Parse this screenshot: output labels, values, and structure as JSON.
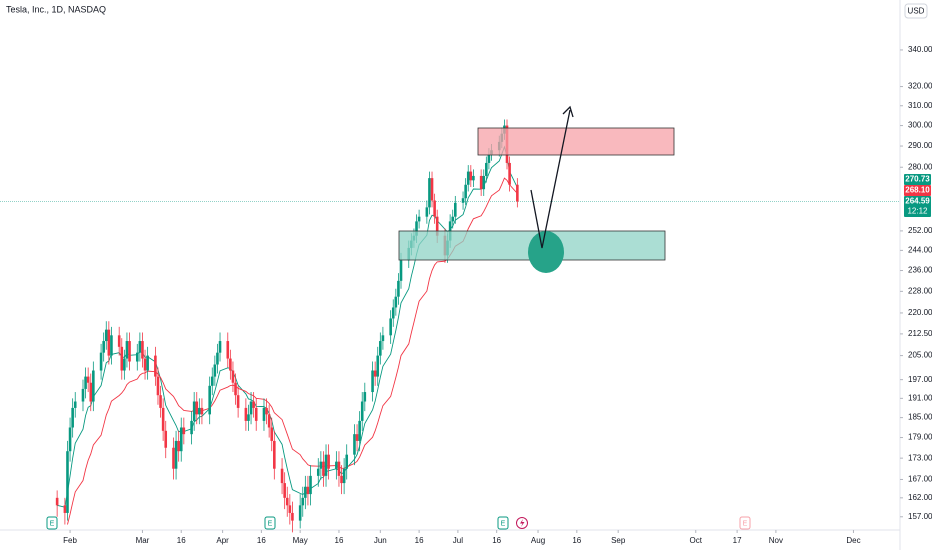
{
  "chart_data": {
    "type": "candlestick",
    "title": "Tesla, Inc., 1D, NASDAQ",
    "currency": "USD",
    "log_scale": true,
    "grid": false,
    "up_color": "#089981",
    "down_color": "#f23645",
    "xlim": [
      4.9,
      353
    ],
    "ylim": [
      153.6,
      369.3
    ],
    "xticks": [
      {
        "value": 32,
        "label": "Feb"
      },
      {
        "value": 60,
        "label": "Mar"
      },
      {
        "value": 75,
        "label": "16"
      },
      {
        "value": 91,
        "label": "Apr"
      },
      {
        "value": 106,
        "label": "16"
      },
      {
        "value": 121,
        "label": "May"
      },
      {
        "value": 136,
        "label": "16"
      },
      {
        "value": 152,
        "label": "Jun"
      },
      {
        "value": 167,
        "label": "16"
      },
      {
        "value": 182,
        "label": "Jul"
      },
      {
        "value": 197,
        "label": "16"
      },
      {
        "value": 213,
        "label": "Aug"
      },
      {
        "value": 228,
        "label": "16"
      },
      {
        "value": 244,
        "label": "Sep"
      },
      {
        "value": 274,
        "label": "Oct"
      },
      {
        "value": 290,
        "label": "17"
      },
      {
        "value": 305,
        "label": "Nov"
      },
      {
        "value": 335,
        "label": "Dec"
      }
    ],
    "yticks": [
      {
        "value": 340,
        "label": "340.00"
      },
      {
        "value": 320,
        "label": "320.00"
      },
      {
        "value": 310,
        "label": "310.00"
      },
      {
        "value": 300,
        "label": "300.00"
      },
      {
        "value": 290,
        "label": "290.00"
      },
      {
        "value": 280,
        "label": "280.00"
      },
      {
        "value": 252,
        "label": "252.00"
      },
      {
        "value": 244,
        "label": "244.00"
      },
      {
        "value": 236,
        "label": "236.00"
      },
      {
        "value": 228,
        "label": "228.00"
      },
      {
        "value": 220,
        "label": "220.00"
      },
      {
        "value": 212.5,
        "label": "212.50"
      },
      {
        "value": 205,
        "label": "205.00"
      },
      {
        "value": 197,
        "label": "197.00"
      },
      {
        "value": 191,
        "label": "191.00"
      },
      {
        "value": 185,
        "label": "185.00"
      },
      {
        "value": 179,
        "label": "179.00"
      },
      {
        "value": 173,
        "label": "173.00"
      },
      {
        "value": 167,
        "label": "167.00"
      },
      {
        "value": 162,
        "label": "162.00"
      },
      {
        "value": 157,
        "label": "157.00"
      }
    ],
    "x": [
      27,
      30,
      31,
      32,
      33,
      34,
      37,
      38,
      39,
      40,
      41,
      44,
      45,
      46,
      47,
      48,
      51,
      52,
      53,
      54,
      55,
      58,
      59,
      60,
      61,
      62,
      65,
      66,
      67,
      68,
      69,
      72,
      73,
      74,
      75,
      76,
      79,
      80,
      81,
      82,
      83,
      86,
      87,
      88,
      89,
      90,
      93,
      94,
      95,
      96,
      97,
      100,
      101,
      102,
      103,
      104,
      107,
      108,
      109,
      110,
      111,
      114,
      115,
      116,
      117,
      118,
      121,
      122,
      123,
      124,
      125,
      128,
      129,
      130,
      131,
      132,
      135,
      136,
      137,
      138,
      139,
      142,
      143,
      144,
      145,
      146,
      149,
      150,
      151,
      152,
      153,
      156,
      157,
      158,
      159,
      160,
      163,
      164,
      165,
      166,
      167,
      170,
      171,
      172,
      173,
      174,
      177,
      178,
      179,
      180,
      181,
      184,
      185,
      186,
      187,
      188,
      191,
      192,
      193,
      194,
      195,
      198,
      199,
      200,
      201,
      202,
      205
    ],
    "ohlc": [
      [
        162,
        164,
        157,
        160
      ],
      [
        160,
        162,
        155,
        158
      ],
      [
        158,
        178,
        156,
        175
      ],
      [
        175,
        185,
        172,
        182
      ],
      [
        182,
        191,
        179,
        188
      ],
      [
        188,
        193,
        185,
        190
      ],
      [
        190,
        197,
        187,
        194
      ],
      [
        194,
        201,
        191,
        198
      ],
      [
        198,
        201,
        193,
        196
      ],
      [
        196,
        199,
        187,
        190
      ],
      [
        190,
        203,
        187,
        200
      ],
      [
        200,
        209,
        197,
        206
      ],
      [
        206,
        213,
        203,
        210
      ],
      [
        210,
        217,
        207,
        214
      ],
      [
        214,
        217,
        202,
        205
      ],
      [
        205,
        215,
        202,
        212
      ],
      [
        212,
        215,
        205,
        208
      ],
      [
        208,
        211,
        197,
        200
      ],
      [
        200,
        207,
        197,
        204
      ],
      [
        204,
        213,
        201,
        210
      ],
      [
        210,
        213,
        200,
        203
      ],
      [
        203,
        209,
        200,
        206
      ],
      [
        206,
        213,
        203,
        210
      ],
      [
        210,
        213,
        201,
        204
      ],
      [
        204,
        207,
        197,
        200
      ],
      [
        200,
        208,
        197,
        205
      ],
      [
        205,
        208,
        195,
        198
      ],
      [
        198,
        201,
        189,
        192
      ],
      [
        192,
        195,
        185,
        188
      ],
      [
        188,
        191,
        178,
        181
      ],
      [
        181,
        184,
        173,
        176
      ],
      [
        176,
        179,
        167,
        170
      ],
      [
        170,
        181,
        167,
        178
      ],
      [
        178,
        181,
        172,
        175
      ],
      [
        175,
        185,
        172,
        182
      ],
      [
        182,
        185,
        177,
        180
      ],
      [
        180,
        187,
        177,
        184
      ],
      [
        184,
        193,
        181,
        190
      ],
      [
        190,
        193,
        183,
        186
      ],
      [
        186,
        191,
        183,
        188
      ],
      [
        188,
        191,
        183,
        186
      ],
      [
        186,
        198,
        183,
        195
      ],
      [
        195,
        201,
        192,
        198
      ],
      [
        198,
        205,
        195,
        202
      ],
      [
        202,
        209,
        199,
        206
      ],
      [
        206,
        213,
        203,
        210
      ],
      [
        210,
        213,
        201,
        204
      ],
      [
        204,
        207,
        197,
        200
      ],
      [
        200,
        203,
        193,
        196
      ],
      [
        196,
        199,
        189,
        192
      ],
      [
        192,
        195,
        185,
        188
      ],
      [
        188,
        191,
        181,
        184
      ],
      [
        184,
        189,
        181,
        186
      ],
      [
        186,
        193,
        183,
        190
      ],
      [
        190,
        193,
        185,
        188
      ],
      [
        188,
        191,
        181,
        184
      ],
      [
        184,
        191,
        181,
        188
      ],
      [
        188,
        191,
        183,
        186
      ],
      [
        186,
        189,
        179,
        182
      ],
      [
        182,
        185,
        175,
        178
      ],
      [
        178,
        181,
        167,
        170
      ],
      [
        170,
        173,
        163,
        166
      ],
      [
        166,
        169,
        159,
        162
      ],
      [
        162,
        165,
        157,
        160
      ],
      [
        160,
        163,
        155,
        158
      ],
      [
        158,
        161,
        153,
        156
      ],
      [
        156,
        163,
        154,
        160
      ],
      [
        160,
        165,
        157,
        162
      ],
      [
        162,
        168,
        159,
        165
      ],
      [
        165,
        168,
        160,
        163
      ],
      [
        163,
        171,
        160,
        168
      ],
      [
        168,
        173,
        165,
        170
      ],
      [
        170,
        175,
        167,
        172
      ],
      [
        172,
        175,
        165,
        168
      ],
      [
        168,
        177,
        165,
        174
      ],
      [
        174,
        177,
        167,
        170
      ],
      [
        170,
        175,
        167,
        172
      ],
      [
        172,
        175,
        165,
        168
      ],
      [
        168,
        171,
        163,
        166
      ],
      [
        166,
        173,
        163,
        170
      ],
      [
        170,
        177,
        167,
        174
      ],
      [
        174,
        183,
        171,
        180
      ],
      [
        180,
        183,
        175,
        178
      ],
      [
        178,
        187,
        175,
        184
      ],
      [
        184,
        193,
        181,
        190
      ],
      [
        190,
        196,
        187,
        193
      ],
      [
        193,
        203,
        190,
        200
      ],
      [
        200,
        203,
        195,
        198
      ],
      [
        198,
        208,
        195,
        205
      ],
      [
        205,
        213,
        202,
        210
      ],
      [
        210,
        215,
        207,
        212
      ],
      [
        212,
        221,
        209,
        218
      ],
      [
        218,
        225,
        215,
        222
      ],
      [
        222,
        229,
        219,
        226
      ],
      [
        226,
        235,
        223,
        232
      ],
      [
        232,
        243,
        229,
        240
      ],
      [
        240,
        248,
        237,
        245
      ],
      [
        245,
        251,
        242,
        248
      ],
      [
        248,
        253,
        245,
        250
      ],
      [
        250,
        259,
        247,
        256
      ],
      [
        256,
        261,
        253,
        258
      ],
      [
        258,
        265,
        255,
        262
      ],
      [
        262,
        278,
        259,
        275
      ],
      [
        275,
        278,
        262,
        265
      ],
      [
        265,
        268,
        255,
        258
      ],
      [
        258,
        261,
        247,
        250
      ],
      [
        250,
        253,
        239,
        242
      ],
      [
        242,
        251,
        239,
        248
      ],
      [
        248,
        259,
        245,
        256
      ],
      [
        256,
        261,
        253,
        258
      ],
      [
        258,
        267,
        255,
        264
      ],
      [
        264,
        269,
        261,
        266
      ],
      [
        266,
        275,
        263,
        272
      ],
      [
        272,
        281,
        269,
        278
      ],
      [
        278,
        281,
        271,
        274
      ],
      [
        274,
        279,
        271,
        276
      ],
      [
        276,
        279,
        267,
        270
      ],
      [
        270,
        279,
        267,
        276
      ],
      [
        276,
        285,
        273,
        282
      ],
      [
        282,
        289,
        279,
        286
      ],
      [
        286,
        291,
        283,
        288
      ],
      [
        288,
        295,
        285,
        292
      ],
      [
        292,
        299,
        289,
        296
      ],
      [
        296,
        303,
        293,
        300
      ],
      [
        300,
        303,
        279,
        282
      ],
      [
        282,
        285,
        269,
        272
      ],
      [
        272,
        275,
        262,
        264.59
      ]
    ],
    "moving_averages": [
      {
        "color": "#089981",
        "values": [
          160,
          159.5,
          163.4,
          168,
          173,
          177.3,
          181.5,
          185.6,
          188.2,
          188.7,
          191.5,
          195.1,
          198.8,
          202.6,
          203.2,
          205.4,
          206,
          204.5,
          204.4,
          205.8,
          205.1,
          205.3,
          206.5,
          205.9,
          204.4,
          204.6,
          202.9,
          200.2,
          197.2,
          193.1,
          188.8,
          184.1,
          182.6,
          180.7,
          181,
          180.8,
          181.6,
          183.7,
          184.3,
          185.2,
          185.4,
          187.8,
          190.4,
          193.3,
          196.5,
          199.9,
          200.9,
          200.7,
          199.5,
          197.6,
          195.2,
          192.4,
          190.8,
          190.6,
          190,
          188.5,
          188.4,
          187.8,
          186.3,
          184.2,
          180.7,
          177,
          173.3,
          170,
          167,
          164.2,
          163.2,
          162.9,
          163.4,
          163.3,
          164.5,
          165.9,
          167.4,
          167.6,
          169.2,
          169.4,
          170,
          169.5,
          168.6,
          169,
          170.2,
          172.7,
          174,
          176.5,
          179.9,
          183.2,
          187.4,
          190.1,
          193.8,
          197.8,
          201.4,
          205.5,
          209.6,
          213.7,
          218.3,
          223.7,
          229,
          233.8,
          237.8,
          242.4,
          246.3,
          250.2,
          256.4,
          258.6,
          258.4,
          256.3,
          252.7,
          251.5,
          252.6,
          254,
          256.5,
          258.9,
          262.2,
          266.2,
          268.1,
          270.1,
          270,
          271.5,
          274.1,
          277.1,
          279.8,
          282.9,
          286.2,
          289.6,
          285,
          278,
          270.73
        ]
      },
      {
        "color": "#f23645",
        "values": [
          null,
          null,
          155,
          157.7,
          160.7,
          163.6,
          166.7,
          169.8,
          172.4,
          174.2,
          176.8,
          179.7,
          182.7,
          185.8,
          187.7,
          190.1,
          191.9,
          192.7,
          193.8,
          195.4,
          196.2,
          197.2,
          198.5,
          199.1,
          199.2,
          199.8,
          199.6,
          198.8,
          197.7,
          196,
          194,
          191.6,
          190.2,
          188.7,
          188,
          187.2,
          186.9,
          187.2,
          187.1,
          187.2,
          187.1,
          187.9,
          188.9,
          190.2,
          191.8,
          193.6,
          194.6,
          195.1,
          195.2,
          194.9,
          194.2,
          193.2,
          192.5,
          192.2,
          191.8,
          191,
          190.7,
          190.2,
          189.4,
          188.3,
          186.5,
          184.4,
          182.2,
          180,
          177.8,
          175.6,
          174,
          172.8,
          172,
          171.1,
          170.8,
          170.7,
          170.8,
          170.5,
          170.9,
          170.8,
          170.9,
          170.6,
          170.1,
          170.1,
          170.5,
          171.5,
          172.1,
          173.3,
          175,
          176.8,
          179.1,
          181,
          183.4,
          186.1,
          188.7,
          191.6,
          194.6,
          197.7,
          201.1,
          205,
          209,
          212.9,
          216.6,
          220.5,
          224.3,
          228.1,
          232.8,
          236,
          238.2,
          239.4,
          239.7,
          240.5,
          242.1,
          243.7,
          245.7,
          247.7,
          250.1,
          252.9,
          255,
          257.1,
          258.4,
          260.2,
          262.4,
          264.8,
          267.1,
          269.6,
          272.2,
          275,
          274,
          272,
          268.1
        ]
      }
    ],
    "price_tags": [
      {
        "value": 270.73,
        "label": "270.73",
        "color": "#089981"
      },
      {
        "value": 268.1,
        "label": "268.10",
        "color": "#f23645"
      },
      {
        "value": 264.59,
        "label": "264.59",
        "color": "#089981"
      }
    ],
    "countdown": "12:12",
    "events": [
      "E",
      "E",
      "E",
      "E"
    ]
  }
}
